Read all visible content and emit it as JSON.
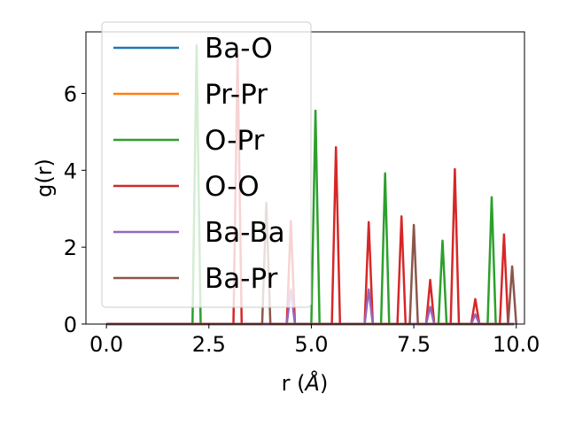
{
  "chart_data": {
    "type": "line",
    "xlabel": "r (",
    "xlabel_unit": "Å",
    "xlabel_close": ")",
    "ylabel": "g(r)",
    "xlim": [
      -0.5,
      10.2
    ],
    "ylim": [
      0,
      7.6
    ],
    "xticks": [
      0.0,
      2.5,
      5.0,
      7.5,
      10.0
    ],
    "xtick_labels": [
      "0.0",
      "2.5",
      "5.0",
      "7.5",
      "10.0"
    ],
    "yticks": [
      0,
      2,
      4,
      6
    ],
    "ytick_labels": [
      "0",
      "2",
      "4",
      "6"
    ],
    "grid": false,
    "legend_position": "upper-left",
    "peak_halfwidth": 0.1,
    "series": [
      {
        "name": "Ba-O",
        "color": "#1f77b4",
        "peaks": []
      },
      {
        "name": "Pr-Pr",
        "color": "#ff7f0e",
        "peaks": []
      },
      {
        "name": "O-Pr",
        "color": "#2ca02c",
        "peaks": [
          [
            2.2,
            7.25
          ],
          [
            5.1,
            5.55
          ],
          [
            6.8,
            3.92
          ],
          [
            8.2,
            2.17
          ],
          [
            9.4,
            3.3
          ]
        ]
      },
      {
        "name": "O-O",
        "color": "#d62728",
        "peaks": [
          [
            3.2,
            7.0
          ],
          [
            4.5,
            2.68
          ],
          [
            5.6,
            4.6
          ],
          [
            6.4,
            2.65
          ],
          [
            7.2,
            2.8
          ],
          [
            7.9,
            1.15
          ],
          [
            8.5,
            4.03
          ],
          [
            9.0,
            0.65
          ],
          [
            9.7,
            2.33
          ]
        ]
      },
      {
        "name": "Ba-Ba",
        "color": "#9467bd",
        "peaks": [
          [
            4.5,
            0.9
          ],
          [
            6.4,
            0.9
          ],
          [
            7.9,
            0.45
          ],
          [
            9.0,
            0.25
          ]
        ]
      },
      {
        "name": "Ba-Pr",
        "color": "#8c564b",
        "peaks": [
          [
            3.9,
            3.15
          ],
          [
            7.5,
            2.58
          ],
          [
            9.9,
            1.5
          ]
        ]
      }
    ]
  }
}
